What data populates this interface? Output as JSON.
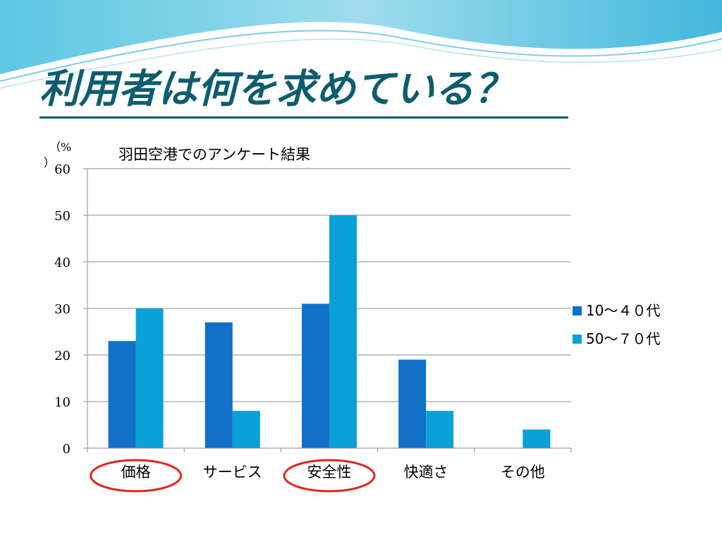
{
  "slide": {
    "title": "利用者は何を求めている？"
  },
  "colors": {
    "series1": "#1170c8",
    "series2": "#0aa0d9",
    "circle": "#e0261d",
    "title": "#0e5d6e"
  },
  "chart_data": {
    "type": "bar",
    "title": "羽田空港でのアンケート結果",
    "unit_label": [
      "（%",
      "）"
    ],
    "categories": [
      "価格",
      "サービス",
      "安全性",
      "快適さ",
      "その他"
    ],
    "series": [
      {
        "name": "10～４０代",
        "values": [
          23,
          27,
          31,
          19,
          0
        ]
      },
      {
        "name": "50～７０代",
        "values": [
          30,
          8,
          50,
          8,
          4
        ]
      }
    ],
    "ylim": [
      0,
      60
    ],
    "yticks": [
      "0",
      "10",
      "20",
      "30",
      "40",
      "50",
      "60"
    ],
    "grid": true,
    "legend": "right",
    "highlighted_categories": [
      "価格",
      "安全性"
    ]
  }
}
